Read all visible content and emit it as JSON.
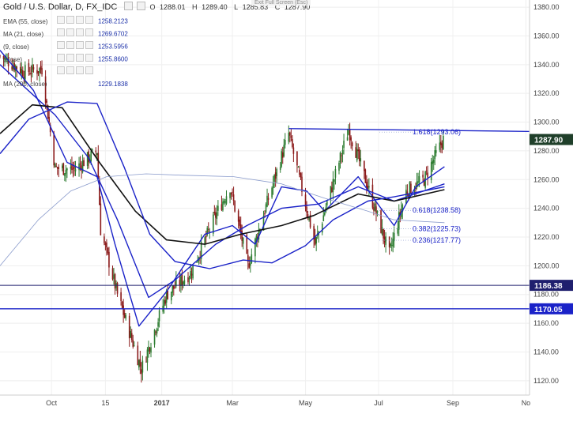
{
  "header": {
    "title": "Gold / U.S. Dollar, D, FX_IDC",
    "ohlc": [
      {
        "k": "O",
        "v": "1288.01"
      },
      {
        "k": "H",
        "v": "1289.40"
      },
      {
        "k": "L",
        "v": "1285.83"
      },
      {
        "k": "C",
        "v": "1287.90"
      }
    ],
    "tooltip": "Exit Full Screen (Esc)"
  },
  "legend": [
    {
      "label": "EMA (55, close)",
      "value": "1258.2123"
    },
    {
      "label": "MA (21, close)",
      "value": "1269.6702"
    },
    {
      "label": "(9, close)",
      "value": "1253.5956"
    },
    {
      "label": "(close)",
      "value": "1255.8600"
    },
    {
      "label": "",
      "value": ""
    },
    {
      "label": "MA (200, close)",
      "value": "1229.1838"
    }
  ],
  "chart_data": {
    "type": "candlestick",
    "y_axis": {
      "range": [
        1110,
        1385
      ],
      "ticks": [
        1120,
        1140,
        1160,
        1180,
        1200,
        1220,
        1240,
        1260,
        1280,
        1300,
        1320,
        1340,
        1360,
        1380
      ]
    },
    "x_axis": {
      "labels": [
        "Oct",
        "15",
        "2017",
        "Mar",
        "May",
        "Jul",
        "Sep",
        "No"
      ]
    },
    "price_label": {
      "value": 1287.9,
      "text": "1287.90"
    },
    "horizontal_lines": [
      {
        "value": 1186.38,
        "text": "1186.38",
        "color": "#1f1f6e"
      },
      {
        "value": 1170.05,
        "text": "1170.05",
        "color": "#1a22c8"
      }
    ],
    "trendline": {
      "from": {
        "date": "2017-04-17",
        "price": 1295.5
      },
      "to": {
        "date": "2017-10-31",
        "price": 1293.5
      },
      "color": "#1a22c8"
    },
    "fibonacci": [
      {
        "level": "1.618",
        "price": 1293.06,
        "text": "1.618(1293.06)"
      },
      {
        "level": "0.618",
        "price": 1238.58,
        "text": "0.618(1238.58)"
      },
      {
        "level": "0.382",
        "price": 1225.73,
        "text": "0.382(1225.73)"
      },
      {
        "level": "0.236",
        "price": 1217.77,
        "text": "0.236(1217.77)"
      }
    ],
    "candle_closes": [
      {
        "date": "2016-08-19",
        "close": 1346
      },
      {
        "date": "2016-09-08",
        "close": 1335
      },
      {
        "date": "2016-09-23",
        "close": 1337
      },
      {
        "date": "2016-10-04",
        "close": 1268
      },
      {
        "date": "2016-10-20",
        "close": 1267
      },
      {
        "date": "2016-11-08",
        "close": 1280
      },
      {
        "date": "2016-11-11",
        "close": 1225
      },
      {
        "date": "2016-11-25",
        "close": 1180
      },
      {
        "date": "2016-12-15",
        "close": 1128
      },
      {
        "date": "2017-01-05",
        "close": 1180
      },
      {
        "date": "2017-01-25",
        "close": 1195
      },
      {
        "date": "2017-02-15",
        "close": 1235
      },
      {
        "date": "2017-02-27",
        "close": 1255
      },
      {
        "date": "2017-03-14",
        "close": 1200
      },
      {
        "date": "2017-04-03",
        "close": 1255
      },
      {
        "date": "2017-04-17",
        "close": 1292
      },
      {
        "date": "2017-05-09",
        "close": 1215
      },
      {
        "date": "2017-06-06",
        "close": 1295
      },
      {
        "date": "2017-06-22",
        "close": 1255
      },
      {
        "date": "2017-07-10",
        "close": 1208
      },
      {
        "date": "2017-07-24",
        "close": 1252
      },
      {
        "date": "2017-08-08",
        "close": 1260
      },
      {
        "date": "2017-08-24",
        "close": 1288
      }
    ],
    "series": [
      {
        "key": "blue_fast",
        "color": "#1a22c8",
        "points": [
          {
            "date": "2016-08-19",
            "value": 1350
          },
          {
            "date": "2016-09-16",
            "value": 1322
          },
          {
            "date": "2016-10-14",
            "value": 1272
          },
          {
            "date": "2016-11-08",
            "value": 1262
          },
          {
            "date": "2016-11-23",
            "value": 1215
          },
          {
            "date": "2016-12-13",
            "value": 1158
          },
          {
            "date": "2017-01-05",
            "value": 1182
          },
          {
            "date": "2017-02-06",
            "value": 1222
          },
          {
            "date": "2017-03-01",
            "value": 1228
          },
          {
            "date": "2017-03-20",
            "value": 1215
          },
          {
            "date": "2017-04-11",
            "value": 1255
          },
          {
            "date": "2017-05-02",
            "value": 1252
          },
          {
            "date": "2017-05-17",
            "value": 1238
          },
          {
            "date": "2017-06-14",
            "value": 1262
          },
          {
            "date": "2017-07-03",
            "value": 1240
          },
          {
            "date": "2017-07-14",
            "value": 1228
          },
          {
            "date": "2017-08-01",
            "value": 1255
          },
          {
            "date": "2017-08-25",
            "value": 1269
          }
        ]
      },
      {
        "key": "blue_mid",
        "color": "#1a22c8",
        "points": [
          {
            "date": "2016-08-19",
            "value": 1340
          },
          {
            "date": "2016-10-04",
            "value": 1305
          },
          {
            "date": "2016-11-01",
            "value": 1275
          },
          {
            "date": "2016-11-25",
            "value": 1232
          },
          {
            "date": "2016-12-21",
            "value": 1178
          },
          {
            "date": "2017-01-12",
            "value": 1190
          },
          {
            "date": "2017-02-15",
            "value": 1215
          },
          {
            "date": "2017-03-13",
            "value": 1228
          },
          {
            "date": "2017-04-11",
            "value": 1240
          },
          {
            "date": "2017-05-12",
            "value": 1243
          },
          {
            "date": "2017-06-14",
            "value": 1255
          },
          {
            "date": "2017-07-14",
            "value": 1245
          },
          {
            "date": "2017-08-25",
            "value": 1257
          }
        ]
      },
      {
        "key": "black_55",
        "color": "#111111",
        "points": [
          {
            "date": "2016-08-19",
            "value": 1292
          },
          {
            "date": "2016-09-15",
            "value": 1312
          },
          {
            "date": "2016-10-10",
            "value": 1310
          },
          {
            "date": "2016-11-10",
            "value": 1272
          },
          {
            "date": "2016-12-10",
            "value": 1238
          },
          {
            "date": "2017-01-05",
            "value": 1218
          },
          {
            "date": "2017-02-06",
            "value": 1215
          },
          {
            "date": "2017-03-08",
            "value": 1222
          },
          {
            "date": "2017-04-11",
            "value": 1228
          },
          {
            "date": "2017-05-08",
            "value": 1235
          },
          {
            "date": "2017-06-14",
            "value": 1250
          },
          {
            "date": "2017-07-14",
            "value": 1245
          },
          {
            "date": "2017-08-25",
            "value": 1253
          }
        ]
      },
      {
        "key": "blue_slow",
        "color": "#1a22c8",
        "points": [
          {
            "date": "2016-08-19",
            "value": 1278
          },
          {
            "date": "2016-09-12",
            "value": 1302
          },
          {
            "date": "2016-10-14",
            "value": 1314
          },
          {
            "date": "2016-11-08",
            "value": 1313
          },
          {
            "date": "2016-12-01",
            "value": 1268
          },
          {
            "date": "2016-12-22",
            "value": 1222
          },
          {
            "date": "2017-01-12",
            "value": 1203
          },
          {
            "date": "2017-02-10",
            "value": 1198
          },
          {
            "date": "2017-03-10",
            "value": 1204
          },
          {
            "date": "2017-04-03",
            "value": 1202
          },
          {
            "date": "2017-05-01",
            "value": 1214
          },
          {
            "date": "2017-05-24",
            "value": 1232
          },
          {
            "date": "2017-06-22",
            "value": 1245
          },
          {
            "date": "2017-07-14",
            "value": 1248
          },
          {
            "date": "2017-08-25",
            "value": 1255
          }
        ]
      },
      {
        "key": "ma200",
        "color": "#8a9bcc",
        "points": [
          {
            "date": "2016-08-19",
            "value": 1200
          },
          {
            "date": "2016-09-20",
            "value": 1232
          },
          {
            "date": "2016-10-17",
            "value": 1252
          },
          {
            "date": "2016-11-16",
            "value": 1262
          },
          {
            "date": "2016-12-19",
            "value": 1264
          },
          {
            "date": "2017-01-19",
            "value": 1263
          },
          {
            "date": "2017-03-02",
            "value": 1262
          },
          {
            "date": "2017-04-11",
            "value": 1257
          },
          {
            "date": "2017-05-17",
            "value": 1247
          },
          {
            "date": "2017-06-22",
            "value": 1238
          },
          {
            "date": "2017-07-14",
            "value": 1232
          },
          {
            "date": "2017-08-25",
            "value": 1230
          }
        ]
      }
    ],
    "date_range": [
      "2016-08-19",
      "2017-11-04"
    ],
    "x_axis_dates": [
      "2016-10-01",
      "2016-11-15",
      "2017-01-01",
      "2017-03-01",
      "2017-05-01",
      "2017-07-01",
      "2017-09-01",
      "2017-11-01"
    ]
  },
  "colors": {
    "up": "#2e7d32",
    "down": "#8b1a1a",
    "accent_blue": "#1a22c8",
    "navy": "#1f1f6e"
  }
}
